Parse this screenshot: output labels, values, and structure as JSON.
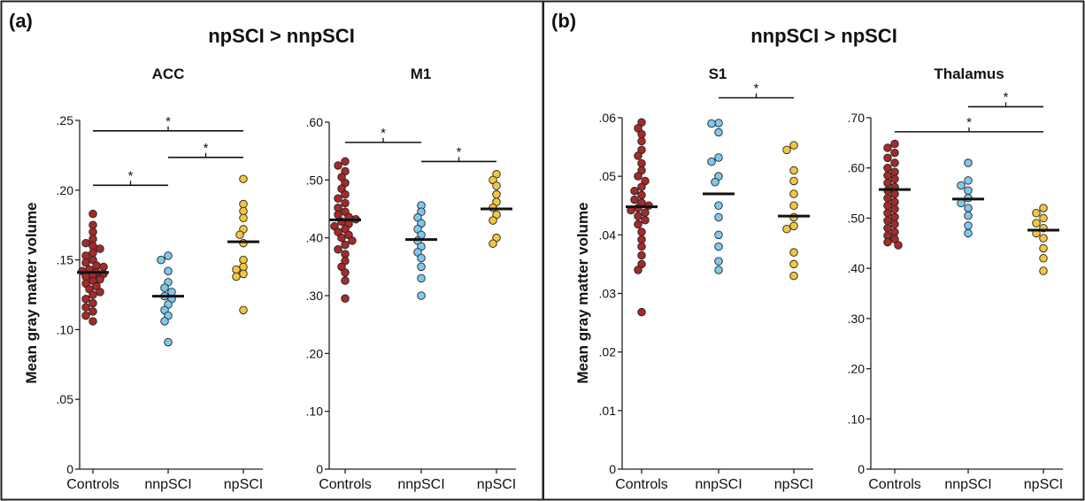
{
  "panels": [
    {
      "letter": "(a)",
      "title": "npSCI > nnpSCI"
    },
    {
      "letter": "(b)",
      "title": "nnpSCI > npSCI"
    }
  ],
  "ylabel": "Mean gray matter volume",
  "categories": [
    "Controls",
    "nnpSCI",
    "npSCI"
  ],
  "group_colors": {
    "Controls": "#a52a2a",
    "nnpSCI": "#7ec8ee",
    "npSCI": "#f2c63f"
  },
  "chart_data": [
    {
      "type": "scatter",
      "title": "ACC",
      "ylim": [
        0,
        0.25
      ],
      "yticks": [
        0,
        0.05,
        0.1,
        0.15,
        0.2,
        0.25
      ],
      "ytick_labels": [
        "0",
        ".05",
        ".10",
        ".15",
        ".20",
        ".25"
      ],
      "categories": [
        "Controls",
        "nnpSCI",
        "npSCI"
      ],
      "series": [
        {
          "values": [
            0.183,
            0.175,
            0.17,
            0.165,
            0.162,
            0.16,
            0.158,
            0.155,
            0.153,
            0.15,
            0.148,
            0.146,
            0.145,
            0.143,
            0.142,
            0.141,
            0.14,
            0.139,
            0.138,
            0.136,
            0.135,
            0.133,
            0.131,
            0.129,
            0.127,
            0.125,
            0.122,
            0.119,
            0.116,
            0.113,
            0.11,
            0.106
          ],
          "mean": 0.141
        },
        {
          "values": [
            0.153,
            0.15,
            0.142,
            0.134,
            0.13,
            0.127,
            0.124,
            0.122,
            0.118,
            0.114,
            0.11,
            0.106,
            0.091
          ],
          "mean": 0.124
        },
        {
          "values": [
            0.208,
            0.19,
            0.185,
            0.18,
            0.172,
            0.168,
            0.162,
            0.15,
            0.145,
            0.143,
            0.14,
            0.138,
            0.114
          ],
          "mean": 0.163
        }
      ],
      "significance": [
        {
          "from": "Controls",
          "to": "npSCI",
          "level": 0.2425,
          "label": "*"
        },
        {
          "from": "nnpSCI",
          "to": "npSCI",
          "level": 0.2235,
          "label": "*"
        },
        {
          "from": "Controls",
          "to": "nnpSCI",
          "level": 0.2035,
          "label": "*"
        }
      ]
    },
    {
      "type": "scatter",
      "title": "M1",
      "ylim": [
        0,
        0.6
      ],
      "yticks": [
        0,
        0.1,
        0.2,
        0.3,
        0.4,
        0.5,
        0.6
      ],
      "ytick_labels": [
        "0",
        ".10",
        ".20",
        ".30",
        ".40",
        ".50",
        ".60"
      ],
      "categories": [
        "Controls",
        "nnpSCI",
        "npSCI"
      ],
      "series": [
        {
          "values": [
            0.532,
            0.525,
            0.515,
            0.505,
            0.495,
            0.485,
            0.475,
            0.468,
            0.46,
            0.452,
            0.445,
            0.44,
            0.436,
            0.432,
            0.428,
            0.424,
            0.42,
            0.415,
            0.41,
            0.405,
            0.4,
            0.395,
            0.388,
            0.38,
            0.372,
            0.36,
            0.35,
            0.34,
            0.326,
            0.295
          ],
          "mean": 0.431
        },
        {
          "values": [
            0.456,
            0.445,
            0.435,
            0.425,
            0.415,
            0.405,
            0.395,
            0.385,
            0.375,
            0.365,
            0.35,
            0.33,
            0.3
          ],
          "mean": 0.397
        },
        {
          "values": [
            0.51,
            0.5,
            0.49,
            0.475,
            0.462,
            0.452,
            0.44,
            0.43,
            0.4,
            0.39
          ],
          "mean": 0.45
        }
      ],
      "significance": [
        {
          "from": "Controls",
          "to": "nnpSCI",
          "level": 0.565,
          "label": "*"
        },
        {
          "from": "nnpSCI",
          "to": "npSCI",
          "level": 0.532,
          "label": "*"
        }
      ]
    },
    {
      "type": "scatter",
      "title": "S1",
      "ylim": [
        0,
        0.06
      ],
      "yticks": [
        0,
        0.01,
        0.02,
        0.03,
        0.04,
        0.05,
        0.06
      ],
      "ytick_labels": [
        "0",
        ".01",
        ".02",
        ".03",
        ".04",
        ".05",
        ".06"
      ],
      "categories": [
        "Controls",
        "nnpSCI",
        "npSCI"
      ],
      "series": [
        {
          "values": [
            0.0592,
            0.0582,
            0.0572,
            0.056,
            0.0545,
            0.0535,
            0.0522,
            0.051,
            0.05,
            0.0492,
            0.0482,
            0.0475,
            0.0468,
            0.046,
            0.0455,
            0.045,
            0.0446,
            0.0442,
            0.0438,
            0.0432,
            0.0425,
            0.0418,
            0.0405,
            0.0392,
            0.038,
            0.0365,
            0.035,
            0.034,
            0.0268
          ],
          "mean": 0.0448
        },
        {
          "values": [
            0.0591,
            0.059,
            0.0575,
            0.0532,
            0.0525,
            0.05,
            0.049,
            0.045,
            0.043,
            0.04,
            0.038,
            0.0355,
            0.034
          ],
          "mean": 0.047
        },
        {
          "values": [
            0.0553,
            0.0545,
            0.051,
            0.0492,
            0.047,
            0.045,
            0.043,
            0.0415,
            0.041,
            0.037,
            0.035,
            0.033
          ],
          "mean": 0.0432
        }
      ],
      "significance": [
        {
          "from": "nnpSCI",
          "to": "npSCI",
          "level": 0.0634,
          "label": "*"
        }
      ]
    },
    {
      "type": "scatter",
      "title": "Thalamus",
      "ylim": [
        0,
        0.7
      ],
      "yticks": [
        0,
        0.1,
        0.2,
        0.3,
        0.4,
        0.5,
        0.6,
        0.7
      ],
      "ytick_labels": [
        "0",
        ".10",
        ".20",
        ".30",
        ".40",
        ".50",
        ".60",
        ".70"
      ],
      "categories": [
        "Controls",
        "nnpSCI",
        "npSCI"
      ],
      "series": [
        {
          "values": [
            0.648,
            0.64,
            0.63,
            0.62,
            0.61,
            0.6,
            0.592,
            0.585,
            0.578,
            0.57,
            0.562,
            0.555,
            0.548,
            0.54,
            0.532,
            0.525,
            0.518,
            0.51,
            0.502,
            0.495,
            0.488,
            0.48,
            0.472,
            0.465,
            0.458,
            0.452,
            0.446
          ],
          "mean": 0.557
        },
        {
          "values": [
            0.61,
            0.575,
            0.565,
            0.555,
            0.54,
            0.53,
            0.52,
            0.505,
            0.485,
            0.47
          ],
          "mean": 0.538
        },
        {
          "values": [
            0.52,
            0.51,
            0.5,
            0.49,
            0.48,
            0.47,
            0.46,
            0.44,
            0.42,
            0.395
          ],
          "mean": 0.476
        }
      ],
      "significance": [
        {
          "from": "nnpSCI",
          "to": "npSCI",
          "level": 0.722,
          "label": "*"
        },
        {
          "from": "Controls",
          "to": "npSCI",
          "level": 0.672,
          "label": "*"
        }
      ]
    }
  ]
}
